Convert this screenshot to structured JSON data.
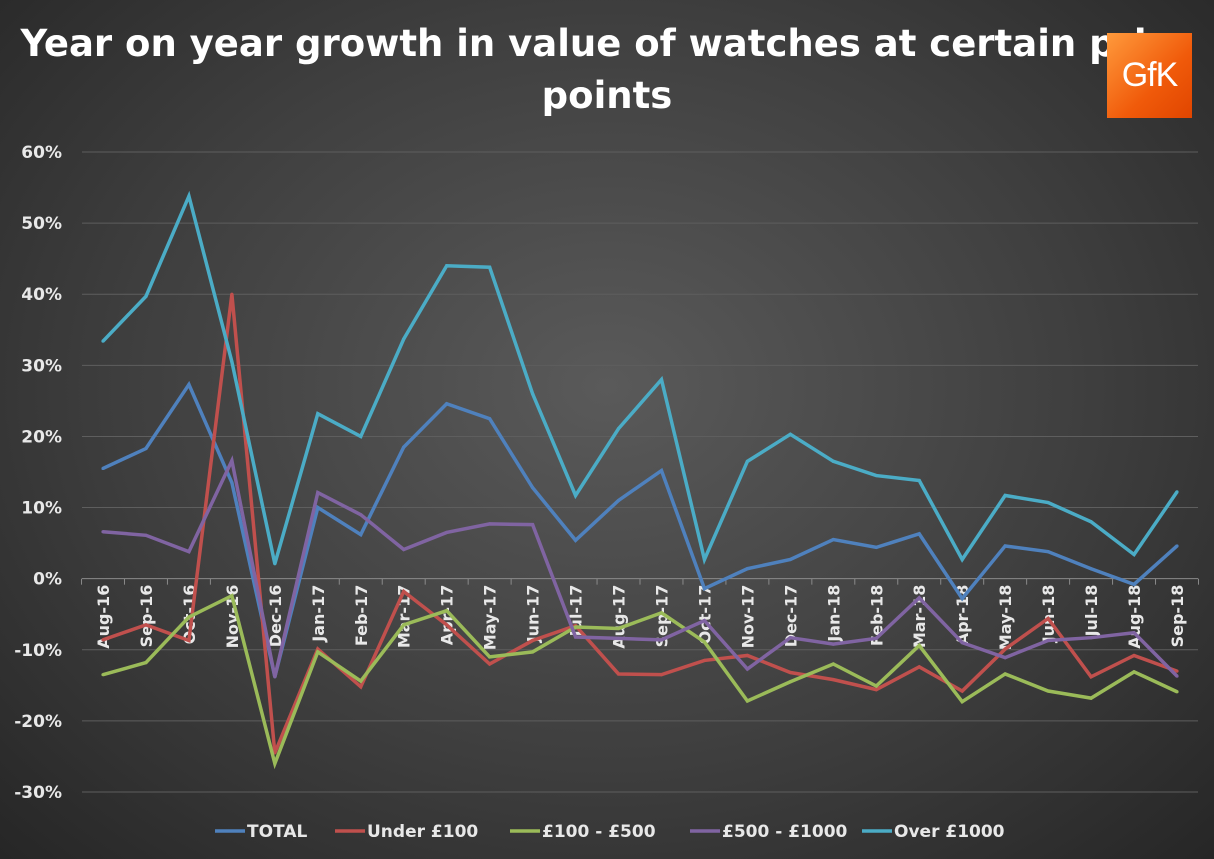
{
  "chart_data": {
    "type": "line",
    "title": "Year on year growth in value of watches at certain price points",
    "logo_text": "GfK",
    "xlabel": "",
    "ylabel": "",
    "ylim": [
      -30,
      60
    ],
    "yticks": [
      "60%",
      "50%",
      "40%",
      "30%",
      "20%",
      "10%",
      "0%",
      "-10%",
      "-20%",
      "-30%"
    ],
    "grid": true,
    "legend_position": "bottom",
    "categories": [
      "Aug-16",
      "Sep-16",
      "Oct-16",
      "Nov-16",
      "Dec-16",
      "Jan-17",
      "Feb-17",
      "Mar-17",
      "Apr-17",
      "May-17",
      "Jun-17",
      "Jul-17",
      "Aug-17",
      "Sep-17",
      "Oct-17",
      "Nov-17",
      "Dec-17",
      "Jan-18",
      "Feb-18",
      "Mar-18",
      "Apr-18",
      "May-18",
      "Jun-18",
      "Jul-18",
      "Aug-18",
      "Sep-18"
    ],
    "series": [
      {
        "name": "TOTAL",
        "color": "#4f81bd",
        "values": [
          15.5,
          18.3,
          27.3,
          13.5,
          -13.8,
          10,
          6.2,
          18.5,
          24.6,
          22.5,
          12.8,
          5.4,
          11,
          15.2,
          -1.4,
          1.4,
          2.7,
          5.5,
          4.4,
          6.3,
          -2.8,
          4.6,
          3.8,
          1.4,
          -0.8,
          4.6
        ]
      },
      {
        "name": "Under £100",
        "color": "#c0504d",
        "values": [
          -8.6,
          -6.5,
          -8.7,
          40,
          -24.5,
          -9.9,
          -15.2,
          -1.8,
          -6.5,
          -12,
          -8.7,
          -6.6,
          -13.4,
          -13.5,
          -11.5,
          -10.8,
          -13.2,
          -14.2,
          -15.6,
          -12.4,
          -15.8,
          -9.9,
          -5.6,
          -13.8,
          -10.8,
          -13
        ]
      },
      {
        "name": "£100 - £500",
        "color": "#9bbb59",
        "values": [
          -13.5,
          -11.8,
          -5.4,
          -2.4,
          -26,
          -10.3,
          -14.4,
          -6.5,
          -4.5,
          -11,
          -10.3,
          -6.8,
          -7,
          -4.8,
          -8.9,
          -17.2,
          -14.5,
          -12,
          -15.1,
          -9.4,
          -17.3,
          -13.4,
          -15.8,
          -16.8,
          -13.1,
          -15.9
        ]
      },
      {
        "name": "£500 - £1000",
        "color": "#8064a2",
        "values": [
          6.6,
          6.1,
          3.8,
          16.6,
          -13.8,
          12.1,
          9,
          4.1,
          6.5,
          7.7,
          7.6,
          -8.2,
          -8.4,
          -8.6,
          -5.9,
          -12.7,
          -8.3,
          -9.2,
          -8.4,
          -2.7,
          -9,
          -11.1,
          -8.7,
          -8.3,
          -7.6,
          -13.7
        ]
      },
      {
        "name": "Over £1000",
        "color": "#4bacc6",
        "values": [
          33.4,
          39.7,
          53.8,
          30.5,
          2.1,
          23.2,
          20,
          33.7,
          44,
          43.8,
          26,
          11.7,
          21.1,
          28,
          2.7,
          16.5,
          20.3,
          16.5,
          14.5,
          13.8,
          2.7,
          11.7,
          10.7,
          8,
          3.4,
          12.2
        ]
      }
    ]
  }
}
